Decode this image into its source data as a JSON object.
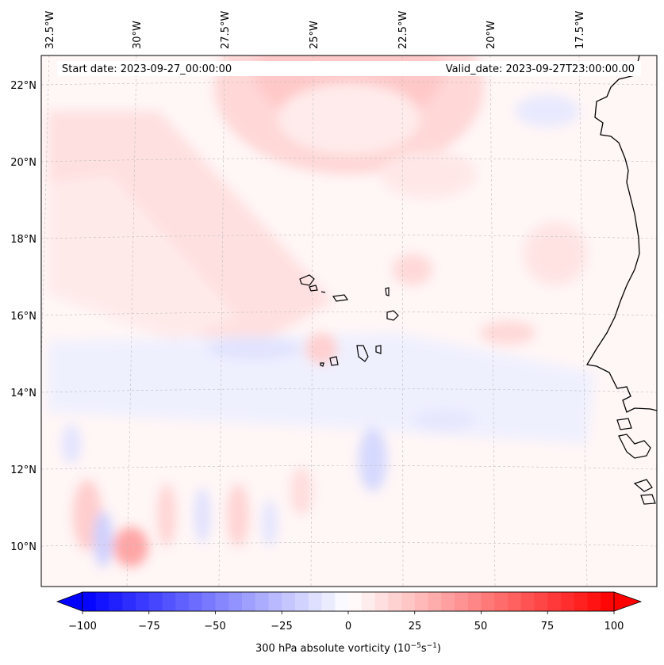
{
  "map": {
    "start_date": "Start date: 2023-09-27_00:00:00",
    "valid_date": "Valid_date: 2023-09-27T23:00:00.00",
    "lon_labels": [
      "32.5°W",
      "30°W",
      "27.5°W",
      "25°W",
      "22.5°W",
      "20°W",
      "17.5°W"
    ],
    "lat_labels": [
      "22°N",
      "20°N",
      "18°N",
      "16°N",
      "14°N",
      "12°N",
      "10°N"
    ],
    "field": "300 hPa absolute vorticity",
    "colormap": "bwr",
    "coastline_color": "#000000"
  },
  "colorbar": {
    "label_prefix": "300 hPa absolute vorticity (10",
    "label_exp1": "−5",
    "label_mid": "s",
    "label_exp2": "−1",
    "label_suffix": ")",
    "ticks": [
      "−100",
      "−75",
      "−50",
      "−25",
      "0",
      "25",
      "50",
      "75",
      "100"
    ],
    "min": -100,
    "max": 100,
    "extend": "both",
    "colors": {
      "low": "#0000ff",
      "mid": "#ffffff",
      "high": "#ff0000"
    }
  }
}
